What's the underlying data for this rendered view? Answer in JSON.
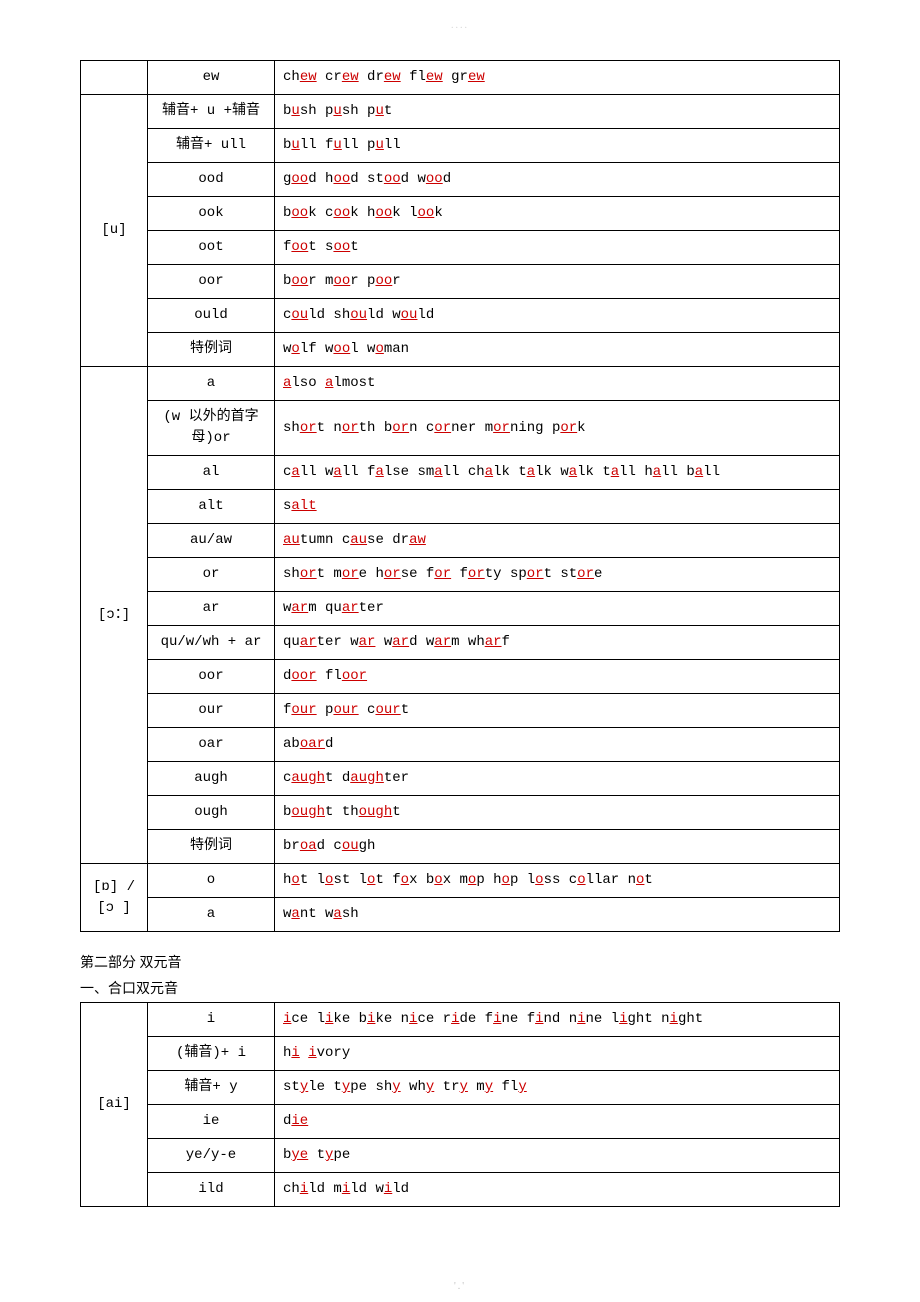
{
  "watermark_top": "....",
  "watermark_bottom": "'.'",
  "table1": {
    "groups": [
      {
        "sound": "",
        "rows": [
          {
            "pattern": "ew",
            "words": [
              [
                "ch",
                "ew",
                ""
              ],
              [
                " cr",
                "ew",
                ""
              ],
              [
                " dr",
                "ew",
                ""
              ],
              [
                " fl",
                "ew",
                ""
              ],
              [
                " gr",
                "ew",
                ""
              ]
            ]
          }
        ]
      },
      {
        "sound": "[u]",
        "rows": [
          {
            "pattern": "辅音+ u +辅音",
            "words": [
              [
                "b",
                "u",
                "sh"
              ],
              [
                " p",
                "u",
                "sh"
              ],
              [
                " p",
                "u",
                "t"
              ]
            ]
          },
          {
            "pattern": "辅音+ ull",
            "words": [
              [
                "b",
                "u",
                "ll"
              ],
              [
                " f",
                "u",
                "ll"
              ],
              [
                " p",
                "u",
                "ll"
              ]
            ]
          },
          {
            "pattern": "ood",
            "words": [
              [
                "g",
                "oo",
                "d"
              ],
              [
                " h",
                "oo",
                "d"
              ],
              [
                " st",
                "oo",
                "d"
              ],
              [
                " w",
                "oo",
                "d"
              ]
            ]
          },
          {
            "pattern": "ook",
            "words": [
              [
                "b",
                "oo",
                "k"
              ],
              [
                " c",
                "oo",
                "k"
              ],
              [
                " h",
                "oo",
                "k"
              ],
              [
                " l",
                "oo",
                "k"
              ]
            ]
          },
          {
            "pattern": "oot",
            "words": [
              [
                "f",
                "oo",
                "t"
              ],
              [
                " s",
                "oo",
                "t"
              ]
            ]
          },
          {
            "pattern": "oor",
            "words": [
              [
                "b",
                "oo",
                "r"
              ],
              [
                " m",
                "oo",
                "r"
              ],
              [
                " p",
                "oo",
                "r"
              ]
            ]
          },
          {
            "pattern": "ould",
            "words": [
              [
                "c",
                "ou",
                "ld"
              ],
              [
                " sh",
                "ou",
                "ld"
              ],
              [
                " w",
                "ou",
                "ld"
              ]
            ]
          },
          {
            "pattern": "特例词",
            "words": [
              [
                "w",
                "o",
                "lf"
              ],
              [
                " w",
                "oo",
                "l"
              ],
              [
                " w",
                "o",
                "man"
              ]
            ]
          }
        ]
      },
      {
        "sound": "[ɔ：]",
        "rows": [
          {
            "pattern": "a",
            "words": [
              [
                "",
                "a",
                "lso"
              ],
              [
                " ",
                "a",
                "lmost"
              ]
            ]
          },
          {
            "pattern": "(w 以外的首字母)or",
            "words": [
              [
                "sh",
                "or",
                "t"
              ],
              [
                " n",
                "or",
                "th"
              ],
              [
                " b",
                "or",
                "n"
              ],
              [
                " c",
                "or",
                "ner"
              ],
              [
                " m",
                "or",
                "ning"
              ],
              [
                " p",
                "or",
                "k"
              ]
            ]
          },
          {
            "pattern": "al",
            "words": [
              [
                "c",
                "a",
                "ll"
              ],
              [
                " w",
                "a",
                "ll"
              ],
              [
                " f",
                "a",
                "lse"
              ],
              [
                " sm",
                "a",
                "ll"
              ],
              [
                " ch",
                "a",
                "lk"
              ],
              [
                " t",
                "a",
                "lk"
              ],
              [
                " w",
                "a",
                "lk"
              ],
              [
                " t",
                "a",
                "ll"
              ],
              [
                " h",
                "a",
                "ll"
              ],
              [
                " b",
                "a",
                "ll"
              ]
            ]
          },
          {
            "pattern": "alt",
            "words": [
              [
                "s",
                "alt",
                ""
              ]
            ]
          },
          {
            "pattern": "au/aw",
            "words": [
              [
                "",
                "au",
                "tumn"
              ],
              [
                " c",
                "au",
                "se"
              ],
              [
                " dr",
                "aw",
                ""
              ]
            ]
          },
          {
            "pattern": "or",
            "words": [
              [
                "sh",
                "or",
                "t"
              ],
              [
                " m",
                "or",
                "e"
              ],
              [
                " h",
                "or",
                "se"
              ],
              [
                " f",
                "or",
                ""
              ],
              [
                " f",
                "or",
                "ty"
              ],
              [
                " sp",
                "or",
                "t"
              ],
              [
                " st",
                "or",
                "e"
              ]
            ]
          },
          {
            "pattern": "ar",
            "words": [
              [
                "w",
                "ar",
                "m"
              ],
              [
                " qu",
                "ar",
                "ter"
              ]
            ]
          },
          {
            "pattern": "qu/w/wh + ar",
            "words": [
              [
                "qu",
                "ar",
                "ter"
              ],
              [
                " w",
                "ar",
                ""
              ],
              [
                " w",
                "ar",
                "d"
              ],
              [
                " w",
                "ar",
                "m"
              ],
              [
                " wh",
                "ar",
                "f"
              ]
            ]
          },
          {
            "pattern": "oor",
            "words": [
              [
                "d",
                "oor",
                ""
              ],
              [
                " fl",
                "oor",
                ""
              ]
            ]
          },
          {
            "pattern": "our",
            "words": [
              [
                "f",
                "our",
                ""
              ],
              [
                " p",
                "our",
                ""
              ],
              [
                " c",
                "our",
                "t"
              ]
            ]
          },
          {
            "pattern": "oar",
            "words": [
              [
                "ab",
                "oar",
                "d"
              ]
            ]
          },
          {
            "pattern": "augh",
            "words": [
              [
                "c",
                "augh",
                "t"
              ],
              [
                " d",
                "augh",
                "ter"
              ]
            ]
          },
          {
            "pattern": "ough",
            "words": [
              [
                "b",
                "ough",
                "t"
              ],
              [
                " th",
                "ough",
                "t"
              ]
            ]
          },
          {
            "pattern": "特例词",
            "words": [
              [
                "br",
                "oa",
                "d"
              ],
              [
                " c",
                "ou",
                "gh"
              ]
            ]
          }
        ]
      },
      {
        "sound": "[ɒ] / [ɔ ]",
        "rows": [
          {
            "pattern": "o",
            "words": [
              [
                "h",
                "o",
                "t"
              ],
              [
                " l",
                "o",
                "st"
              ],
              [
                " l",
                "o",
                "t"
              ],
              [
                " f",
                "o",
                "x"
              ],
              [
                " b",
                "o",
                "x"
              ],
              [
                " m",
                "o",
                "p"
              ],
              [
                " h",
                "o",
                "p"
              ],
              [
                " l",
                "o",
                "ss"
              ],
              [
                " c",
                "o",
                "llar"
              ],
              [
                " n",
                "o",
                "t"
              ]
            ]
          },
          {
            "pattern": "a",
            "words": [
              [
                "w",
                "a",
                "nt"
              ],
              [
                " w",
                "a",
                "sh"
              ]
            ]
          }
        ]
      }
    ]
  },
  "heading_part2": "第二部分 双元音",
  "heading_sec1": "一、合口双元音",
  "table2": {
    "groups": [
      {
        "sound": "[ai]",
        "rows": [
          {
            "pattern": "i",
            "words": [
              [
                "",
                "i",
                "ce"
              ],
              [
                " l",
                "i",
                "ke"
              ],
              [
                " b",
                "i",
                "ke"
              ],
              [
                " n",
                "i",
                "ce"
              ],
              [
                " r",
                "i",
                "de"
              ],
              [
                " f",
                "i",
                "ne"
              ],
              [
                " f",
                "i",
                "nd"
              ],
              [
                " n",
                "i",
                "ne"
              ],
              [
                " l",
                "i",
                "ght"
              ],
              [
                " n",
                "i",
                "ght"
              ]
            ]
          },
          {
            "pattern": "(辅音)+ i",
            "words": [
              [
                "h",
                "i",
                ""
              ],
              [
                " ",
                "i",
                "vory"
              ]
            ]
          },
          {
            "pattern": "辅音+ y",
            "words": [
              [
                "st",
                "y",
                "le"
              ],
              [
                " t",
                "y",
                "pe"
              ],
              [
                " sh",
                "y",
                ""
              ],
              [
                " wh",
                "y",
                ""
              ],
              [
                " tr",
                "y",
                ""
              ],
              [
                " m",
                "y",
                ""
              ],
              [
                " fl",
                "y",
                ""
              ]
            ]
          },
          {
            "pattern": "ie",
            "words": [
              [
                "d",
                "ie",
                ""
              ]
            ]
          },
          {
            "pattern": "ye/y-e",
            "words": [
              [
                "b",
                "ye",
                ""
              ],
              [
                " t",
                "y",
                "pe"
              ]
            ]
          },
          {
            "pattern": "ild",
            "words": [
              [
                "ch",
                "i",
                "ld"
              ],
              [
                " m",
                "i",
                "ld"
              ],
              [
                " w",
                "i",
                "ld"
              ]
            ]
          }
        ]
      }
    ]
  }
}
